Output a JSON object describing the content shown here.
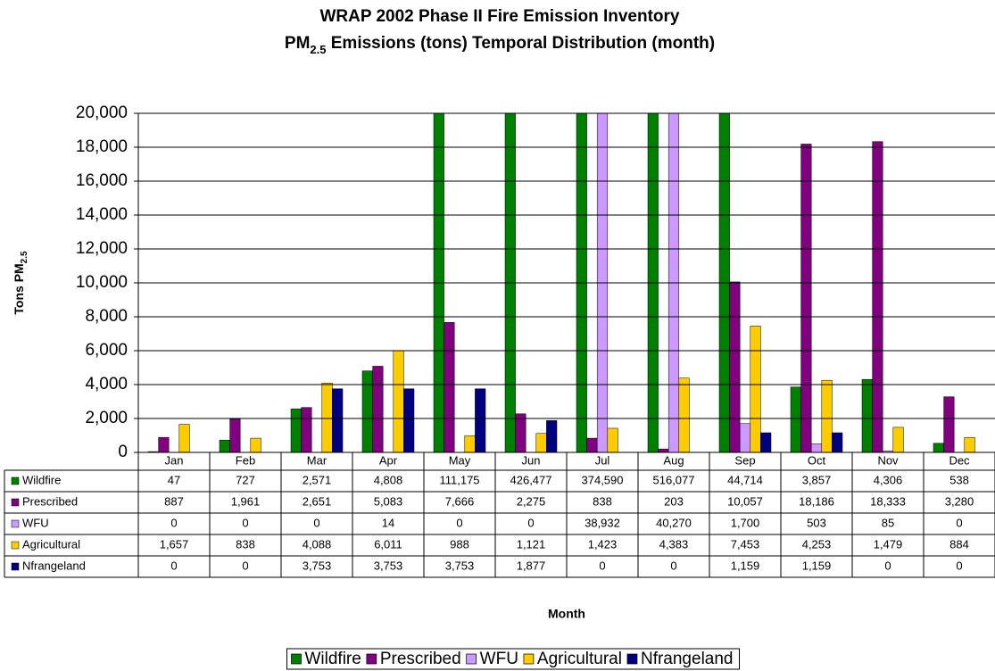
{
  "chart_data": {
    "type": "bar",
    "title": [
      "WRAP 2002 Phase II Fire Emission Inventory",
      [
        "PM",
        "2.5",
        " Emissions (tons) Temporal Distribution (month)"
      ]
    ],
    "y_label": [
      "Tons PM",
      "2.5"
    ],
    "x_label": "Month",
    "categories": [
      "Jan",
      "Feb",
      "Mar",
      "Apr",
      "May",
      "Jun",
      "Jul",
      "Aug",
      "Sep",
      "Oct",
      "Nov",
      "Dec"
    ],
    "series": [
      {
        "name": "Wildfire",
        "color": "#008000",
        "values": [
          47,
          727,
          2571,
          4808,
          111175,
          426477,
          374590,
          516077,
          44714,
          3857,
          4306,
          538
        ],
        "value_labels": [
          "47",
          "727",
          "2,571",
          "4,808",
          "111,175",
          "426,477",
          "374,590",
          "516,077",
          "44,714",
          "3,857",
          "4,306",
          "538"
        ]
      },
      {
        "name": "Prescribed",
        "color": "#800080",
        "values": [
          887,
          1961,
          2651,
          5083,
          7666,
          2275,
          838,
          203,
          10057,
          18186,
          18333,
          3280
        ],
        "value_labels": [
          "887",
          "1,961",
          "2,651",
          "5,083",
          "7,666",
          "2,275",
          "838",
          "203",
          "10,057",
          "18,186",
          "18,333",
          "3,280"
        ]
      },
      {
        "name": "WFU",
        "color": "#cc99ff",
        "values": [
          0,
          0,
          0,
          14,
          0,
          0,
          38932,
          40270,
          1700,
          503,
          85,
          0
        ],
        "value_labels": [
          "0",
          "0",
          "0",
          "14",
          "0",
          "0",
          "38,932",
          "40,270",
          "1,700",
          "503",
          "85",
          "0"
        ]
      },
      {
        "name": "Agricultural",
        "color": "#ffcc00",
        "values": [
          1657,
          838,
          4088,
          6011,
          988,
          1121,
          1423,
          4383,
          7453,
          4253,
          1479,
          884
        ],
        "value_labels": [
          "1,657",
          "838",
          "4,088",
          "6,011",
          "988",
          "1,121",
          "1,423",
          "4,383",
          "7,453",
          "4,253",
          "1,479",
          "884"
        ]
      },
      {
        "name": "Nfrangeland",
        "color": "#000080",
        "values": [
          0,
          0,
          3753,
          3753,
          3753,
          1877,
          0,
          0,
          1159,
          1159,
          0,
          0
        ],
        "value_labels": [
          "0",
          "0",
          "3,753",
          "3,753",
          "3,753",
          "1,877",
          "0",
          "0",
          "1,159",
          "1,159",
          "0",
          "0"
        ]
      }
    ],
    "ylim": [
      0,
      20000
    ],
    "yticks": [
      0,
      {
        "value": 2000,
        "label": "2,000"
      },
      {
        "value": 4000,
        "label": "4,000"
      },
      {
        "value": 6000,
        "label": "6,000"
      },
      {
        "value": 8000,
        "label": "8,000"
      },
      {
        "value": 10000,
        "label": "10,000"
      },
      {
        "value": 12000,
        "label": "12,000"
      },
      {
        "value": 14000,
        "label": "14,000"
      },
      {
        "value": 16000,
        "label": "16,000"
      },
      {
        "value": 18000,
        "label": "18,000"
      },
      {
        "value": 20000,
        "label": "20,000"
      }
    ],
    "grid": true,
    "legend": "bottom"
  }
}
